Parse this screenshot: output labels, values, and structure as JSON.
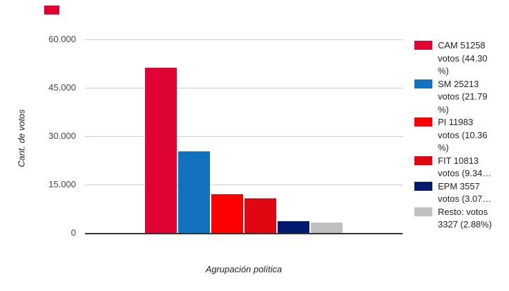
{
  "marker": {
    "color": "#E00434"
  },
  "chart_data": {
    "type": "bar",
    "categories": [
      "CAM",
      "SM",
      "PI",
      "FIT",
      "EPM",
      "Resto"
    ],
    "values": [
      51258,
      25213,
      11983,
      10813,
      3557,
      3327
    ],
    "percentages": [
      44.3,
      21.79,
      10.36,
      9.34,
      3.07,
      2.88
    ],
    "colors": [
      "#E00434",
      "#1272BF",
      "#FF0000",
      "#E00713",
      "#001A70",
      "#C0C0C2"
    ],
    "title": "",
    "xlabel": "Agrupación política",
    "ylabel": "Cant. de votos",
    "ylim": [
      0,
      60000
    ],
    "yticks": [
      {
        "value": 60000,
        "label": "60.000"
      },
      {
        "value": 45000,
        "label": "45.000"
      },
      {
        "value": 30000,
        "label": "30.000"
      },
      {
        "value": 15000,
        "label": "15.000"
      },
      {
        "value": 0,
        "label": "0"
      }
    ],
    "grid": true,
    "legend_position": "right",
    "gridline_color": "#CCCCCC",
    "baseline_color": "#333333"
  },
  "legend": {
    "entries": [
      {
        "id": "cam",
        "color": "#E00434",
        "lines": [
          "CAM 51258",
          "votos (44.30",
          "%)"
        ]
      },
      {
        "id": "sm",
        "color": "#1272BF",
        "lines": [
          "SM 25213",
          "votos (21.79",
          "%)"
        ]
      },
      {
        "id": "pi",
        "color": "#FF0000",
        "lines": [
          "PI 11983",
          "votos (10.36",
          "%)"
        ]
      },
      {
        "id": "fit",
        "color": "#E00713",
        "lines": [
          "FIT 10813",
          "votos (9.34…"
        ]
      },
      {
        "id": "epm",
        "color": "#001A70",
        "lines": [
          "EPM 3557",
          "votos (3.07…"
        ]
      },
      {
        "id": "resto",
        "color": "#C0C0C2",
        "lines": [
          "Resto: votos",
          "3327 (2.88%)"
        ]
      }
    ]
  }
}
